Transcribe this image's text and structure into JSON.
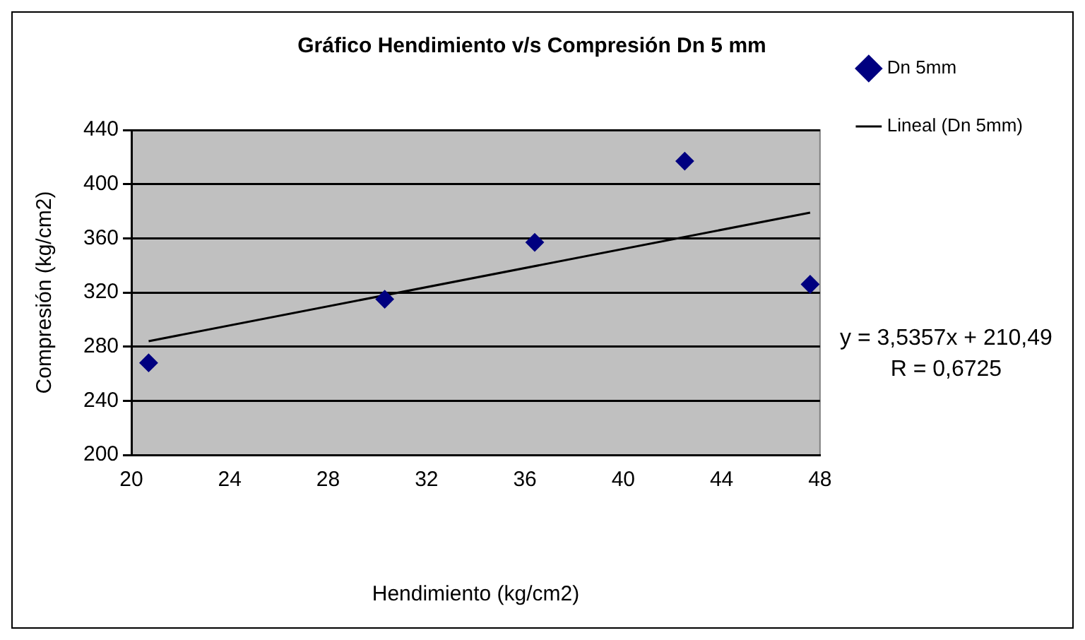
{
  "chart_data": {
    "type": "scatter",
    "title": "Gráfico Hendimiento v/s Compresión Dn 5 mm",
    "xlabel": "Hendimiento (kg/cm2)",
    "ylabel": "Compresión (kg/cm2)",
    "xlim": [
      20,
      48
    ],
    "xticks": [
      20,
      24,
      28,
      32,
      36,
      40,
      44,
      48
    ],
    "ylim": [
      200,
      440
    ],
    "yticks": [
      200,
      240,
      280,
      320,
      360,
      400,
      440
    ],
    "grid": "y",
    "legend": "right",
    "series": [
      {
        "name": "Dn 5mm",
        "color": "#000080",
        "marker": "diamond",
        "x": [
          20.7,
          30.3,
          36.4,
          42.5,
          47.6
        ],
        "values": [
          268,
          315,
          357,
          417,
          326
        ]
      },
      {
        "name": "Lineal (Dn 5mm)",
        "type": "line",
        "color": "#000000",
        "marker": "none",
        "line_style": "solid",
        "x": [
          20.7,
          47.6
        ],
        "values": [
          284,
          379
        ]
      }
    ],
    "annotations": [
      "y = 3,5357x + 210,49",
      "R = 0,6725"
    ]
  }
}
